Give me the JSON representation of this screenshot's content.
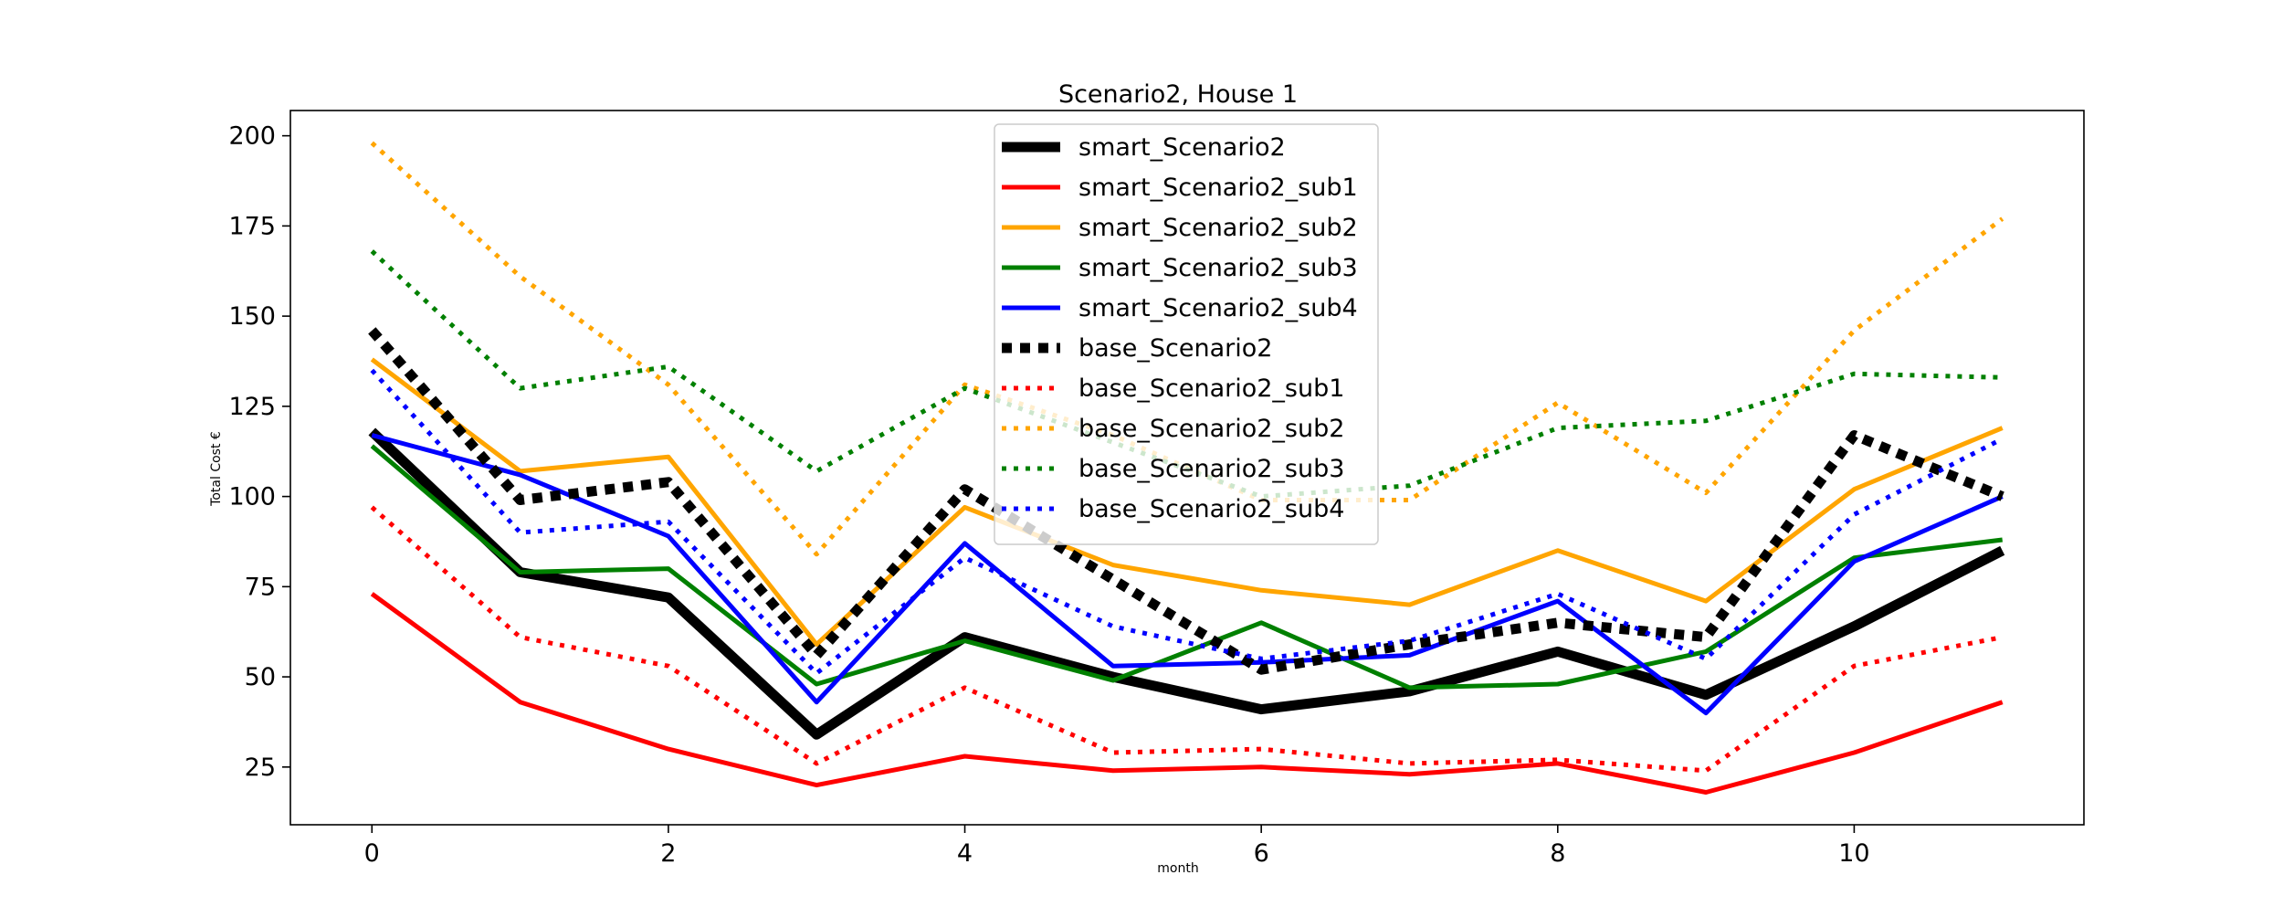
{
  "chart_data": {
    "type": "line",
    "title": "Scenario2, House 1",
    "xlabel": "month",
    "ylabel": "Total Cost €",
    "xlim": [
      -0.55,
      11.55
    ],
    "ylim": [
      9,
      207
    ],
    "xticks": [
      0,
      2,
      4,
      6,
      8,
      10
    ],
    "yticks": [
      25,
      50,
      75,
      100,
      125,
      150,
      175,
      200
    ],
    "grid": false,
    "legend_position": "upper-center",
    "x": [
      0,
      1,
      2,
      3,
      4,
      5,
      6,
      7,
      8,
      9,
      10,
      11
    ],
    "series": [
      {
        "name": "smart_Scenario2",
        "color": "#000000",
        "style": "solid",
        "weight": "heavy",
        "values": [
          118,
          79,
          72,
          34,
          61,
          50,
          41,
          46,
          57,
          45,
          64,
          85
        ]
      },
      {
        "name": "smart_Scenario2_sub1",
        "color": "#ff0000",
        "style": "solid",
        "weight": "normal",
        "values": [
          73,
          43,
          30,
          20,
          28,
          24,
          25,
          23,
          26,
          18,
          29,
          43
        ]
      },
      {
        "name": "smart_Scenario2_sub2",
        "color": "#ffa500",
        "style": "solid",
        "weight": "normal",
        "values": [
          138,
          107,
          111,
          59,
          97,
          81,
          74,
          70,
          85,
          71,
          102,
          119
        ]
      },
      {
        "name": "smart_Scenario2_sub3",
        "color": "#008000",
        "style": "solid",
        "weight": "normal",
        "values": [
          114,
          79,
          80,
          48,
          60,
          49,
          65,
          47,
          48,
          57,
          83,
          88
        ]
      },
      {
        "name": "smart_Scenario2_sub4",
        "color": "#0000ff",
        "style": "solid",
        "weight": "normal",
        "values": [
          117,
          106,
          89,
          43,
          87,
          53,
          54,
          56,
          71,
          40,
          82,
          100
        ]
      },
      {
        "name": "base_Scenario2",
        "color": "#000000",
        "style": "dotted",
        "weight": "heavy",
        "values": [
          146,
          99,
          104,
          56,
          102,
          77,
          52,
          59,
          65,
          61,
          117,
          100
        ]
      },
      {
        "name": "base_Scenario2_sub1",
        "color": "#ff0000",
        "style": "dotted",
        "weight": "normal",
        "values": [
          97,
          61,
          53,
          26,
          47,
          29,
          30,
          26,
          27,
          24,
          53,
          61
        ]
      },
      {
        "name": "base_Scenario2_sub2",
        "color": "#ffa500",
        "style": "dotted",
        "weight": "normal",
        "values": [
          198,
          161,
          131,
          84,
          131,
          117,
          99,
          99,
          126,
          101,
          146,
          177
        ]
      },
      {
        "name": "base_Scenario2_sub3",
        "color": "#008000",
        "style": "dotted",
        "weight": "normal",
        "values": [
          168,
          130,
          136,
          107,
          130,
          115,
          100,
          103,
          119,
          121,
          134,
          133
        ]
      },
      {
        "name": "base_Scenario2_sub4",
        "color": "#0000ff",
        "style": "dotted",
        "weight": "normal",
        "values": [
          135,
          90,
          93,
          51,
          83,
          64,
          55,
          60,
          73,
          55,
          95,
          116
        ]
      }
    ]
  }
}
